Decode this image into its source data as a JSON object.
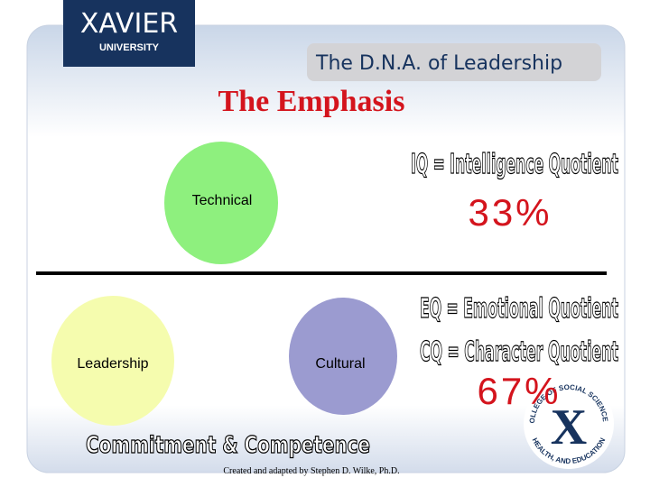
{
  "header": {
    "logo_name": "XAVIER",
    "logo_sub": "UNIVERSITY",
    "banner": "The D.N.A. of Leadership"
  },
  "title": "The Emphasis",
  "circles": [
    {
      "label": "Technical"
    },
    {
      "label": "Leadership"
    },
    {
      "label": "Cultural"
    }
  ],
  "quotients": {
    "iq": "IQ = Intelligence Quotient",
    "iq_share": "33%",
    "eq": "EQ = Emotional Quotient",
    "cq": "CQ = Character Quotient",
    "eq_cq_share": "67%"
  },
  "footer": {
    "slogan": "Commitment   &   Competence",
    "credit": "Created and adapted by Stephen D. Wilke, Ph.D."
  },
  "seal": {
    "top": "COLLEGE OF SOCIAL SCIENCES,",
    "bottom": "HEALTH, AND EDUCATION",
    "letter": "X"
  }
}
